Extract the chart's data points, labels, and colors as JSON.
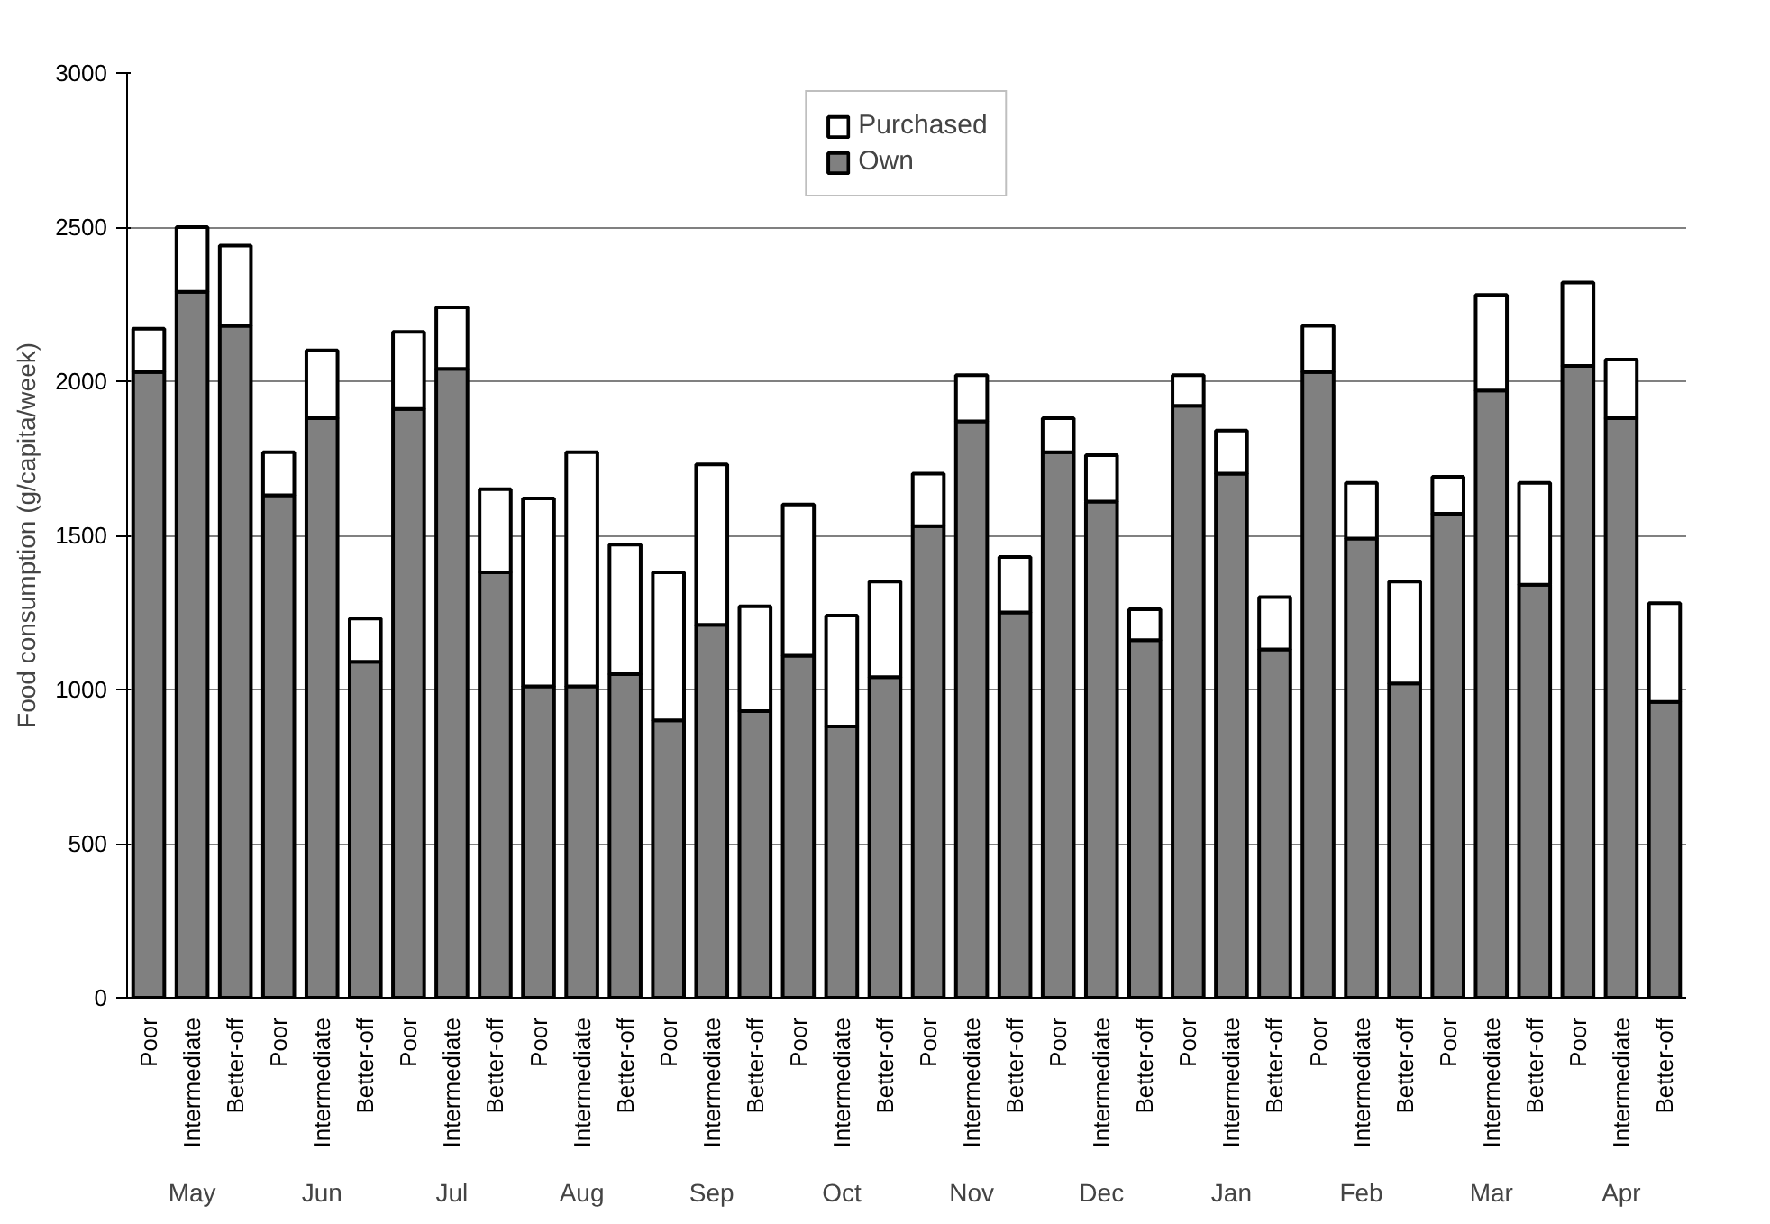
{
  "chart_data": {
    "type": "bar",
    "stacked": true,
    "ylabel": "Food consumption (g/capita/week)",
    "categories": [
      "Poor",
      "Intermediate",
      "Better-off",
      "Poor",
      "Intermediate",
      "Better-off",
      "Poor",
      "Intermediate",
      "Better-off",
      "Poor",
      "Intermediate",
      "Better-off",
      "Poor",
      "Intermediate",
      "Better-off",
      "Poor",
      "Intermediate",
      "Better-off",
      "Poor",
      "Intermediate",
      "Better-off",
      "Poor",
      "Intermediate",
      "Better-off",
      "Poor",
      "Intermediate",
      "Better-off",
      "Poor",
      "Intermediate",
      "Better-off",
      "Poor",
      "Intermediate",
      "Better-off",
      "Poor",
      "Intermediate",
      "Better-off"
    ],
    "annotations": [
      "May",
      "Jun",
      "Jul",
      "Aug",
      "Sep",
      "Oct",
      "Nov",
      "Dec",
      "Jan",
      "Feb",
      "Mar",
      "Apr"
    ],
    "series": [
      {
        "name": "Own",
        "color": "#808080",
        "values": [
          2030,
          2290,
          2180,
          1630,
          1880,
          1090,
          1910,
          2040,
          1380,
          1010,
          1010,
          1050,
          900,
          1210,
          930,
          1110,
          880,
          1040,
          1530,
          1870,
          1250,
          1770,
          1610,
          1160,
          1920,
          1700,
          1130,
          2030,
          1490,
          1020,
          1570,
          1970,
          1340,
          2050,
          1880,
          960
        ]
      },
      {
        "name": "Purchased",
        "color": "#ffffff",
        "values": [
          140,
          210,
          260,
          140,
          220,
          140,
          250,
          200,
          270,
          610,
          760,
          420,
          480,
          520,
          340,
          490,
          360,
          310,
          170,
          150,
          180,
          110,
          150,
          100,
          100,
          140,
          170,
          150,
          180,
          330,
          120,
          310,
          330,
          270,
          190,
          320
        ]
      }
    ],
    "ylim": [
      0,
      3000
    ],
    "yticks": [
      0,
      500,
      1000,
      1500,
      2000,
      2500,
      3000
    ],
    "grid": "y",
    "legend": "top"
  }
}
